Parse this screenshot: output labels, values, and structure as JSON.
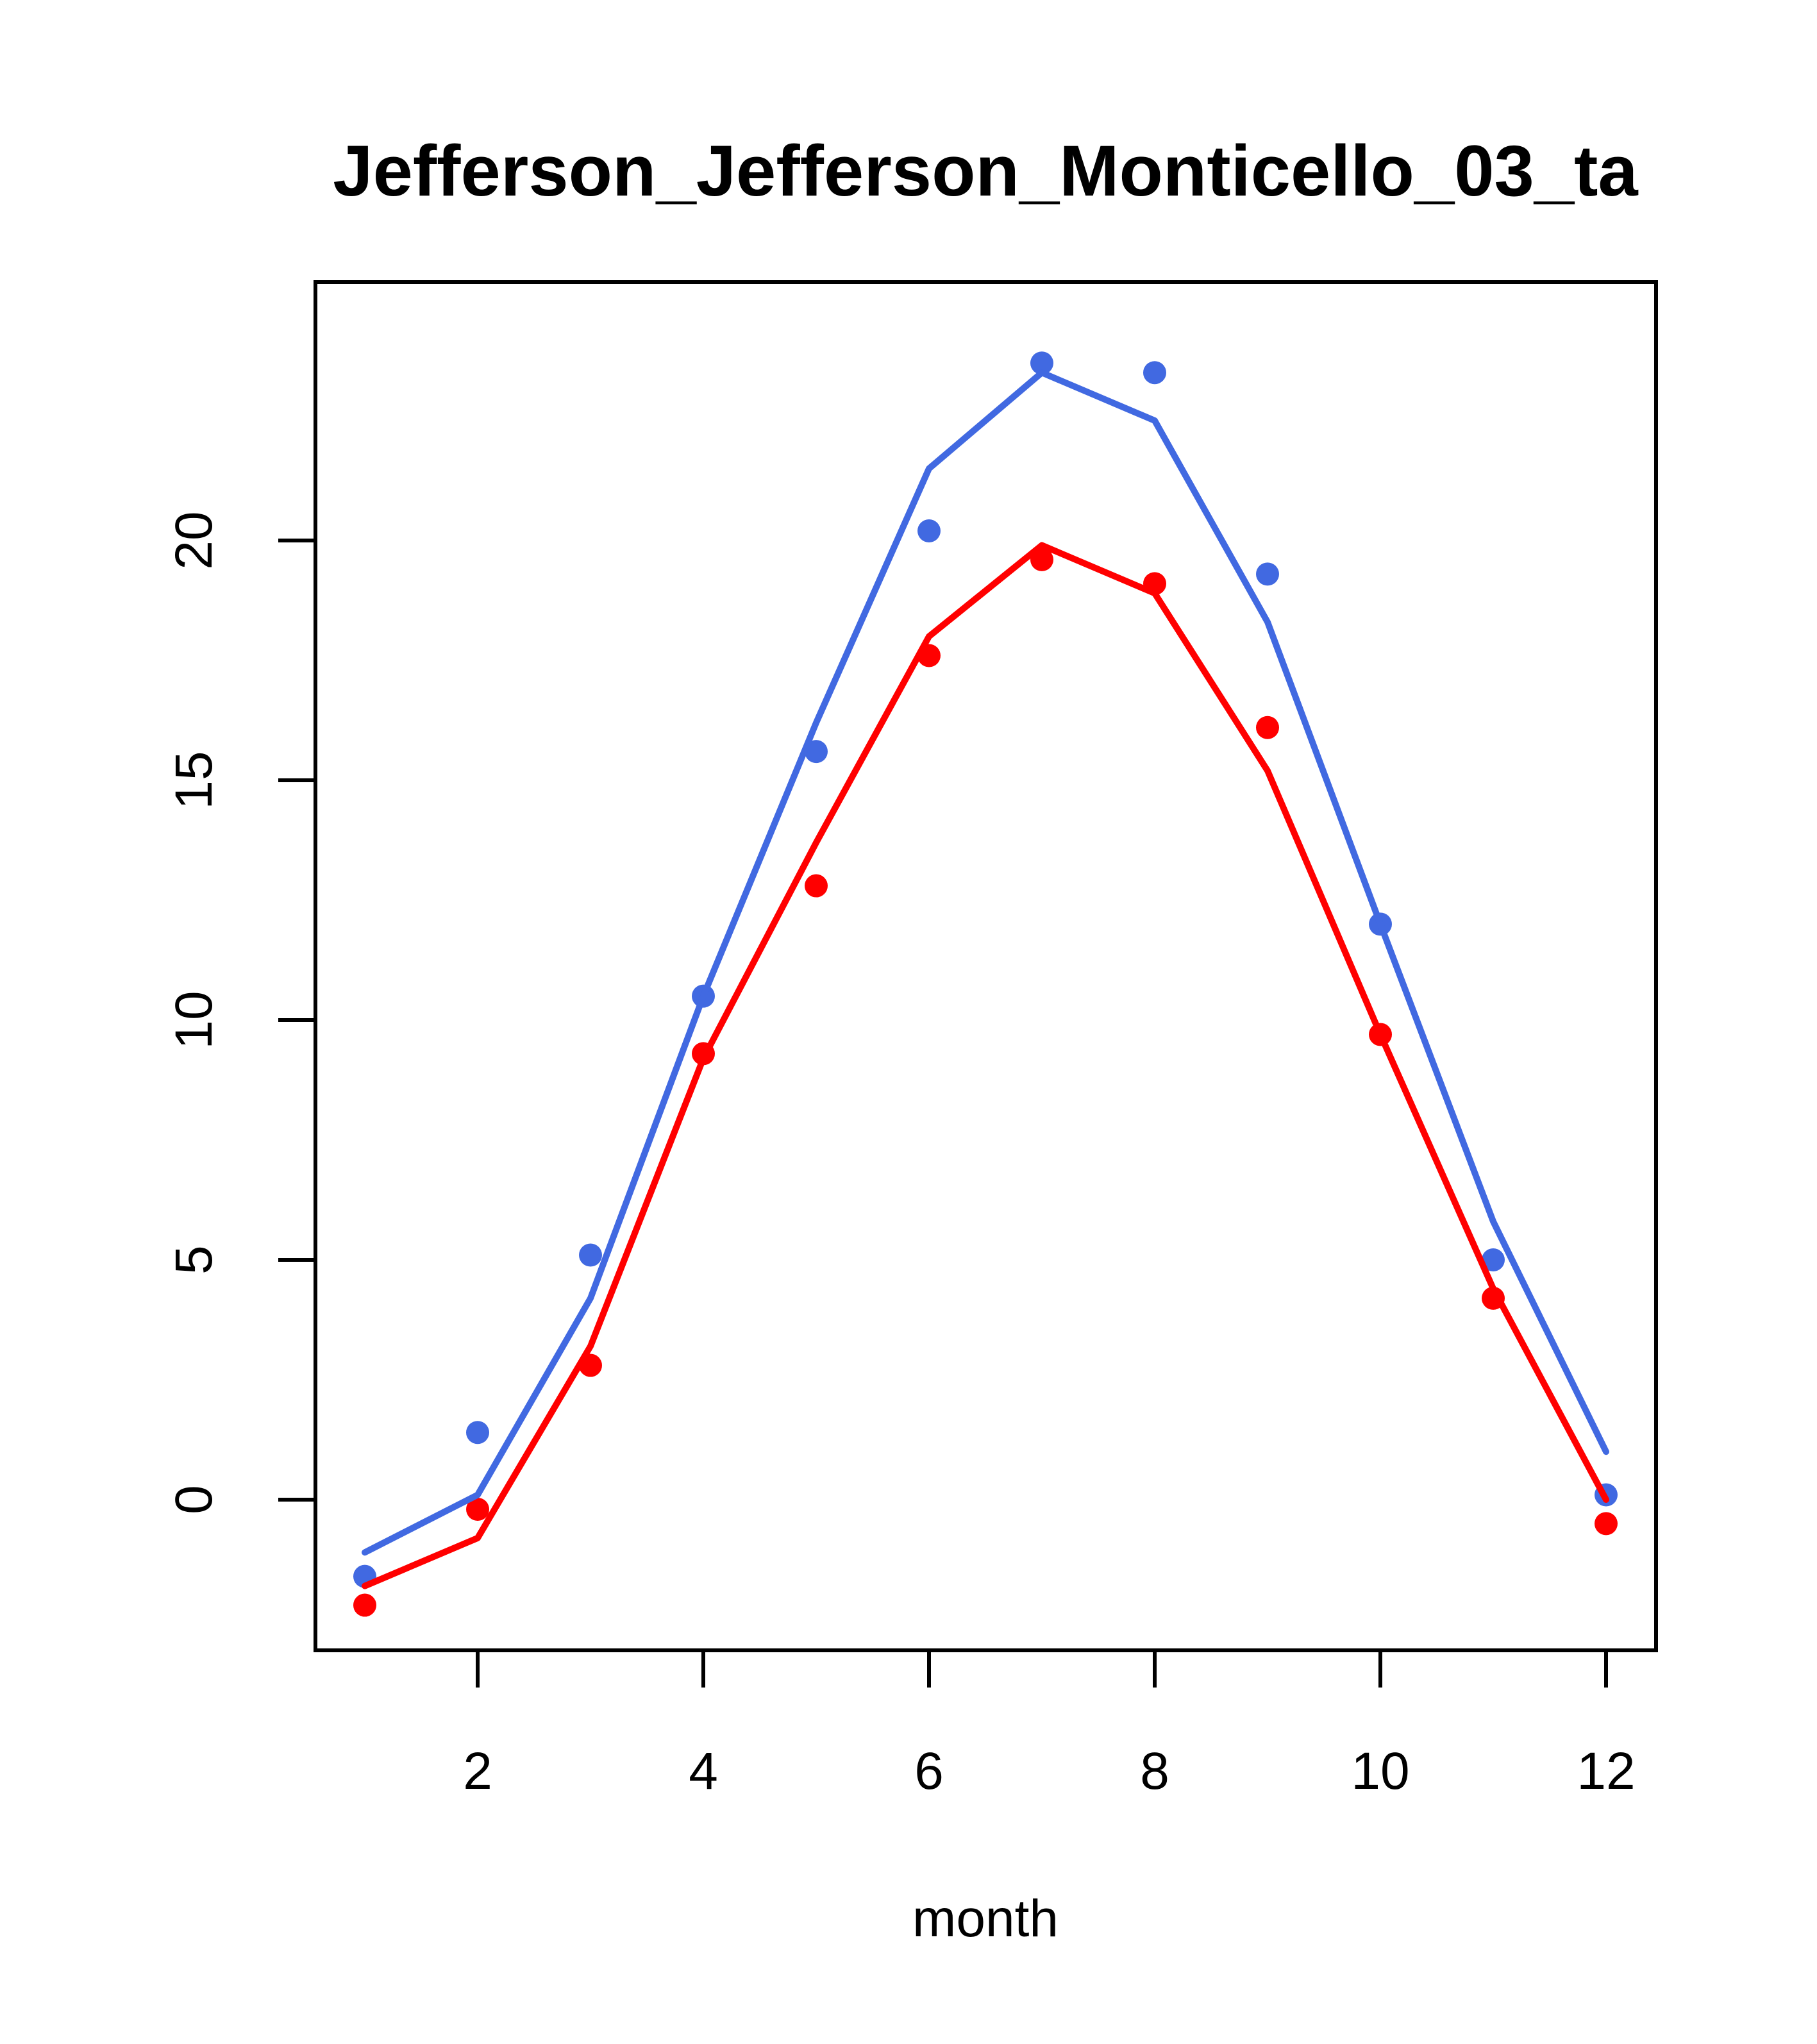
{
  "chart_data": {
    "type": "line",
    "title": "Jefferson_Jefferson_Monticello_03_ta",
    "xlabel": "month",
    "ylabel": "",
    "x": [
      1,
      2,
      3,
      4,
      5,
      6,
      7,
      8,
      9,
      10,
      11,
      12
    ],
    "x_ticks": [
      2,
      4,
      6,
      8,
      10,
      12
    ],
    "y_ticks": [
      0,
      5,
      10,
      15,
      20
    ],
    "xlim": [
      0.56,
      12.44
    ],
    "ylim": [
      -3.1,
      25.4
    ],
    "grid": false,
    "legend": "none",
    "colors": {
      "blue": "#4169E1",
      "red": "#FF0000",
      "axis": "#000000",
      "background": "#FFFFFF"
    },
    "series": [
      {
        "name": "blue-points",
        "kind": "scatter",
        "color": "#4169E1",
        "values": [
          -1.6,
          1.4,
          5.1,
          10.5,
          15.6,
          20.2,
          23.7,
          23.5,
          19.3,
          12.0,
          5.0,
          0.1
        ]
      },
      {
        "name": "red-points",
        "kind": "scatter",
        "color": "#FF0000",
        "values": [
          -2.2,
          -0.2,
          2.8,
          9.3,
          12.8,
          17.6,
          19.6,
          19.1,
          16.1,
          9.7,
          4.2,
          -0.5
        ]
      },
      {
        "name": "blue-fit-line",
        "kind": "line",
        "color": "#4169E1",
        "values": [
          -1.1,
          0.1,
          4.2,
          10.5,
          16.2,
          21.5,
          23.5,
          22.5,
          18.3,
          12.0,
          5.8,
          1.0
        ]
      },
      {
        "name": "red-fit-line",
        "kind": "line",
        "color": "#FF0000",
        "values": [
          -1.8,
          -0.8,
          3.2,
          9.2,
          13.7,
          18.0,
          19.9,
          18.9,
          15.2,
          9.7,
          4.4,
          0.0
        ]
      }
    ]
  }
}
